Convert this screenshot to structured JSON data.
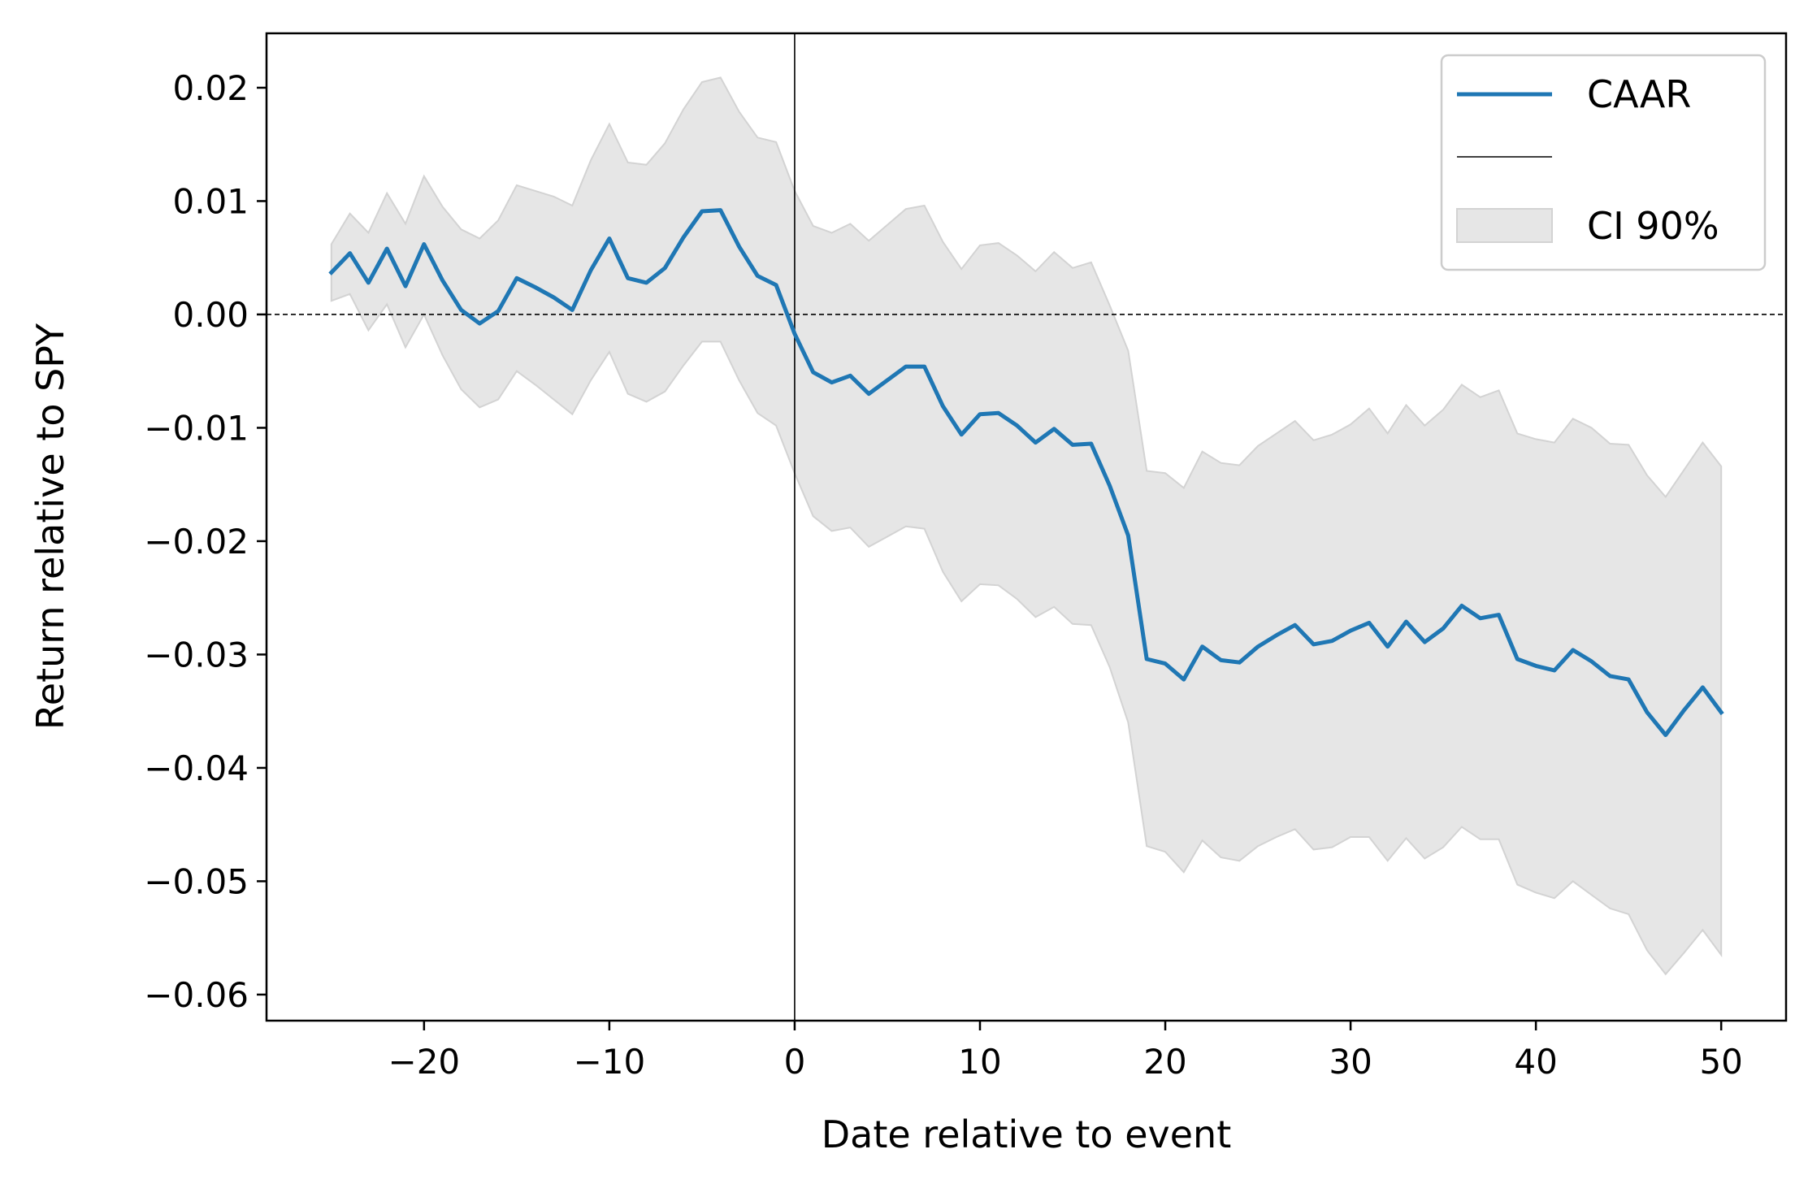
{
  "chart_data": {
    "type": "line",
    "xlabel": "Date relative to event",
    "ylabel": "Return relative to SPY",
    "xlim": [
      -28.5,
      53.5
    ],
    "ylim": [
      -0.0623,
      0.0248
    ],
    "xticks": [
      -20,
      -10,
      0,
      10,
      20,
      30,
      40,
      50
    ],
    "xtick_labels": [
      "−20",
      "−10",
      "0",
      "10",
      "20",
      "30",
      "40",
      "50"
    ],
    "yticks": [
      0.02,
      0.01,
      0.0,
      -0.01,
      -0.02,
      -0.03,
      -0.04,
      -0.05,
      -0.06
    ],
    "ytick_labels": [
      "0.02",
      "0.01",
      "0.00",
      "−0.01",
      "−0.02",
      "−0.03",
      "−0.04",
      "−0.05",
      "−0.06"
    ],
    "hline": 0.0,
    "vline": 0,
    "x": [
      -25,
      -24,
      -23,
      -22,
      -21,
      -20,
      -19,
      -18,
      -17,
      -16,
      -15,
      -14,
      -13,
      -12,
      -11,
      -10,
      -9,
      -8,
      -7,
      -6,
      -5,
      -4,
      -3,
      -2,
      -1,
      0,
      1,
      2,
      3,
      4,
      5,
      6,
      7,
      8,
      9,
      10,
      11,
      12,
      13,
      14,
      15,
      16,
      17,
      18,
      19,
      20,
      21,
      22,
      23,
      24,
      25,
      26,
      27,
      28,
      29,
      30,
      31,
      32,
      33,
      34,
      35,
      36,
      37,
      38,
      39,
      40,
      41,
      42,
      43,
      44,
      45,
      46,
      47,
      48,
      49,
      50
    ],
    "series": [
      {
        "name": "CAAR",
        "color": "#1f77b4",
        "values": [
          0.0037,
          0.0054,
          0.0028,
          0.0058,
          0.0025,
          0.0062,
          0.003,
          0.0004,
          -0.0008,
          0.0003,
          0.0032,
          0.0024,
          0.0015,
          0.0004,
          0.0039,
          0.0067,
          0.0032,
          0.0028,
          0.0041,
          0.0068,
          0.0091,
          0.0092,
          0.006,
          0.0034,
          0.0026,
          -0.0017,
          -0.0051,
          -0.006,
          -0.0054,
          -0.007,
          -0.0058,
          -0.0046,
          -0.0046,
          -0.0081,
          -0.0106,
          -0.0088,
          -0.0087,
          -0.0098,
          -0.0113,
          -0.0101,
          -0.0115,
          -0.0114,
          -0.0151,
          -0.0195,
          -0.0304,
          -0.0308,
          -0.0322,
          -0.0293,
          -0.0305,
          -0.0307,
          -0.0293,
          -0.0283,
          -0.0274,
          -0.0291,
          -0.0288,
          -0.0279,
          -0.0272,
          -0.0293,
          -0.0271,
          -0.0289,
          -0.0277,
          -0.0257,
          -0.0268,
          -0.0265,
          -0.0304,
          -0.031,
          -0.0314,
          -0.0296,
          -0.0306,
          -0.0319,
          -0.0322,
          -0.0351,
          -0.0371,
          -0.0349,
          -0.0329,
          -0.0351
        ]
      }
    ],
    "ci": {
      "name": "CI 90%",
      "color": "#e6e6e6",
      "upper": [
        0.0062,
        0.0089,
        0.0072,
        0.0107,
        0.008,
        0.0122,
        0.0095,
        0.0075,
        0.0067,
        0.0083,
        0.0114,
        0.0109,
        0.0104,
        0.0096,
        0.0136,
        0.0168,
        0.0134,
        0.0132,
        0.0151,
        0.0181,
        0.0205,
        0.0209,
        0.0179,
        0.0156,
        0.0152,
        0.0109,
        0.0078,
        0.0072,
        0.008,
        0.0065,
        0.0079,
        0.0093,
        0.0096,
        0.0064,
        0.004,
        0.0061,
        0.0063,
        0.0052,
        0.0038,
        0.0055,
        0.0041,
        0.0046,
        0.0008,
        -0.0032,
        -0.0138,
        -0.014,
        -0.0153,
        -0.0121,
        -0.0131,
        -0.0133,
        -0.0116,
        -0.0105,
        -0.0094,
        -0.0111,
        -0.0106,
        -0.0097,
        -0.0083,
        -0.0105,
        -0.008,
        -0.0098,
        -0.0084,
        -0.0062,
        -0.0073,
        -0.0067,
        -0.0105,
        -0.011,
        -0.0113,
        -0.0092,
        -0.01,
        -0.0114,
        -0.0115,
        -0.0142,
        -0.0161,
        -0.0137,
        -0.0113,
        -0.0134
      ],
      "lower": [
        0.0012,
        0.0018,
        -0.0014,
        0.0009,
        -0.0029,
        0.0,
        -0.0036,
        -0.0066,
        -0.0082,
        -0.0075,
        -0.005,
        -0.0062,
        -0.0075,
        -0.0088,
        -0.0058,
        -0.0033,
        -0.007,
        -0.0077,
        -0.0068,
        -0.0045,
        -0.0024,
        -0.0024,
        -0.0058,
        -0.0087,
        -0.0098,
        -0.014,
        -0.0178,
        -0.0191,
        -0.0188,
        -0.0205,
        -0.0196,
        -0.0187,
        -0.0189,
        -0.0227,
        -0.0253,
        -0.0238,
        -0.0239,
        -0.0251,
        -0.0267,
        -0.0258,
        -0.0273,
        -0.0274,
        -0.0311,
        -0.036,
        -0.0469,
        -0.0474,
        -0.0492,
        -0.0464,
        -0.0479,
        -0.0482,
        -0.0469,
        -0.0461,
        -0.0454,
        -0.0472,
        -0.047,
        -0.0461,
        -0.0461,
        -0.0482,
        -0.0462,
        -0.048,
        -0.047,
        -0.0452,
        -0.0463,
        -0.0463,
        -0.0503,
        -0.051,
        -0.0515,
        -0.05,
        -0.0512,
        -0.0524,
        -0.0529,
        -0.0561,
        -0.0582,
        -0.0563,
        -0.0543,
        -0.0565
      ]
    },
    "legend": {
      "placement": "top-right",
      "entries": [
        "CAAR",
        "",
        "CI 90%"
      ]
    }
  }
}
